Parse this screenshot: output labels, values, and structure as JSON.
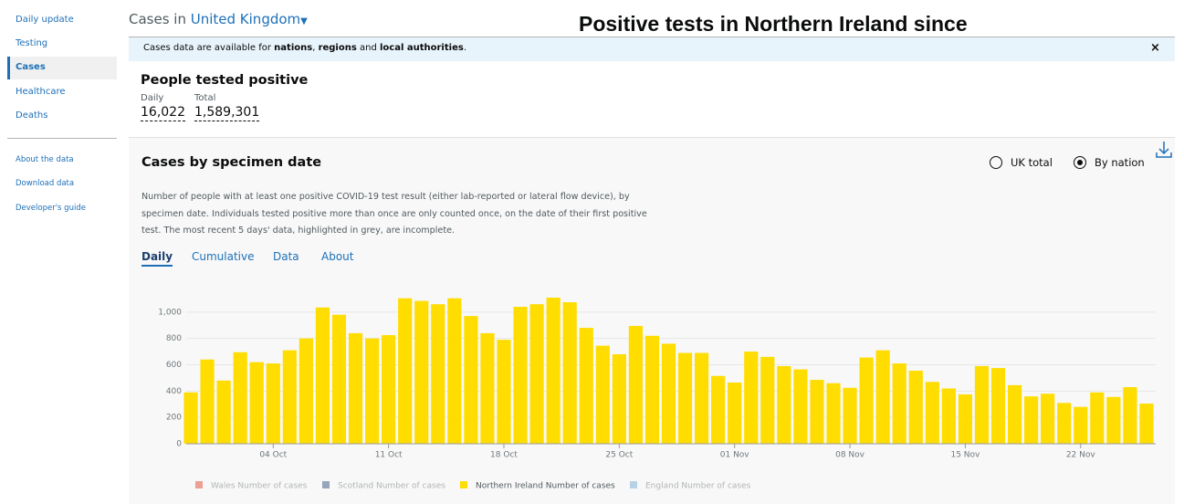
{
  "sidebar": {
    "items": [
      "Daily update",
      "Testing",
      "Cases",
      "Healthcare",
      "Deaths"
    ],
    "links": [
      "About the data",
      "Download data",
      "Developer's guide"
    ]
  },
  "header": {
    "prefix": "Cases in",
    "area": "United Kingdom",
    "overlay_title": "Positive tests in Northern Ireland since"
  },
  "banner": {
    "parts": [
      "Cases data are available for ",
      "nations",
      ", ",
      "regions",
      " and ",
      "local authorities",
      "."
    ],
    "close": "×"
  },
  "summary": {
    "title": "People tested positive",
    "daily_label": "Daily",
    "daily_value": "16,022",
    "total_label": "Total",
    "total_value": "1,589,301"
  },
  "card": {
    "title": "Cases by specimen date",
    "options": [
      "UK total",
      "By nation"
    ],
    "selected": 1,
    "description": "Number of people with at least one positive COVID-19 test result (either lab-reported or lateral flow device), by specimen date. Individuals tested positive more than once are only counted once, on the date of their first positive test. The most recent 5 days' data, highlighted in grey, are incomplete.",
    "tabs": [
      "Daily",
      "Cumulative",
      "Data",
      "About"
    ]
  },
  "chart_data": {
    "type": "bar",
    "color": "#ffdd00",
    "categories": [
      null,
      null,
      null,
      null,
      null,
      "04 Oct",
      null,
      null,
      null,
      null,
      null,
      null,
      "11 Oct",
      null,
      null,
      null,
      null,
      null,
      null,
      "18 Oct",
      null,
      null,
      null,
      null,
      null,
      null,
      "25 Oct",
      null,
      null,
      null,
      null,
      null,
      null,
      "01 Nov",
      null,
      null,
      null,
      null,
      null,
      null,
      "08 Nov",
      null,
      null,
      null,
      null,
      null,
      null,
      "15 Nov",
      null,
      null,
      null,
      null,
      null,
      null,
      "22 Nov",
      null,
      null,
      null,
      null
    ],
    "values": [
      390,
      640,
      480,
      695,
      620,
      610,
      710,
      800,
      1035,
      980,
      840,
      800,
      825,
      1105,
      1085,
      1060,
      1105,
      970,
      840,
      790,
      1040,
      1060,
      1110,
      1075,
      880,
      745,
      680,
      895,
      820,
      760,
      690,
      690,
      515,
      465,
      700,
      660,
      590,
      565,
      485,
      460,
      425,
      655,
      710,
      610,
      555,
      470,
      420,
      375,
      590,
      575,
      445,
      360,
      380,
      310,
      280,
      390,
      355,
      430,
      305
    ],
    "ylim": [
      0,
      1200
    ],
    "yticks": [
      0,
      200,
      400,
      600,
      800,
      {
        "value": 1000,
        "label": "1,000"
      }
    ],
    "grid": true,
    "legend": [
      {
        "name": "Wales Number of cases",
        "color": "#e8897a",
        "active": false
      },
      {
        "name": "Scotland Number of cases",
        "color": "#7f8fa9",
        "active": false
      },
      {
        "name": "Northern Ireland Number of cases",
        "color": "#ffdd00",
        "active": true
      },
      {
        "name": "England Number of cases",
        "color": "#a8c8e0",
        "active": false
      }
    ]
  }
}
